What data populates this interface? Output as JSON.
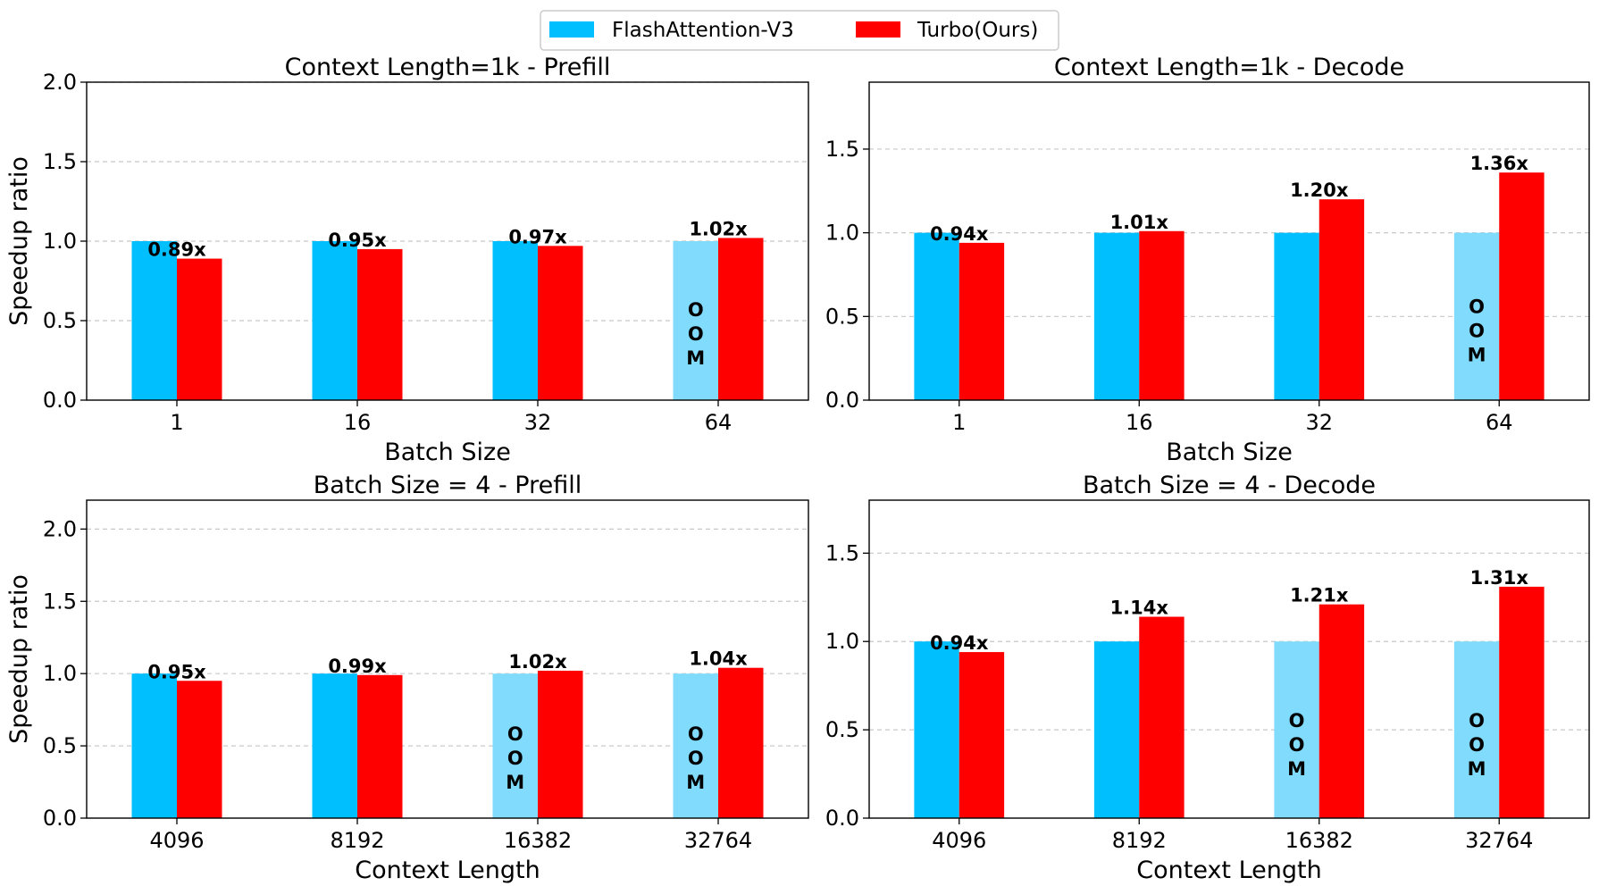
{
  "legend": {
    "items": [
      {
        "label": "FlashAttention-V3",
        "color": "#00bfff"
      },
      {
        "label": "Turbo(Ours)",
        "color": "#ff0000"
      }
    ]
  },
  "colors": {
    "baseline": "#00bfff",
    "baseline_oom": "#80dbfc",
    "turbo": "#ff0000",
    "grid": "#c8c8c8"
  },
  "oom_text": "OOM",
  "chart_data": [
    {
      "type": "bar",
      "title": "Context Length=1k - Prefill",
      "xlabel": "Batch Size",
      "ylabel": "Speedup ratio",
      "categories": [
        "1",
        "16",
        "32",
        "64"
      ],
      "ylim": [
        0,
        2.0
      ],
      "yticks": [
        "0.0",
        "0.5",
        "1.0",
        "1.5",
        "2.0"
      ],
      "grid": true,
      "series": [
        {
          "name": "FlashAttention-V3",
          "values": [
            1.0,
            1.0,
            1.0,
            1.0
          ],
          "oom": [
            false,
            false,
            false,
            true
          ]
        },
        {
          "name": "Turbo(Ours)",
          "values": [
            0.89,
            0.95,
            0.97,
            1.02
          ],
          "labels": [
            "0.89x",
            "0.95x",
            "0.97x",
            "1.02x"
          ]
        }
      ]
    },
    {
      "type": "bar",
      "title": "Context Length=1k - Decode",
      "xlabel": "Batch Size",
      "ylabel": "",
      "categories": [
        "1",
        "16",
        "32",
        "64"
      ],
      "ylim": [
        0,
        1.9
      ],
      "yticks": [
        "0.0",
        "0.5",
        "1.0",
        "1.5"
      ],
      "grid": true,
      "series": [
        {
          "name": "FlashAttention-V3",
          "values": [
            1.0,
            1.0,
            1.0,
            1.0
          ],
          "oom": [
            false,
            false,
            false,
            true
          ]
        },
        {
          "name": "Turbo(Ours)",
          "values": [
            0.94,
            1.01,
            1.2,
            1.36
          ],
          "labels": [
            "0.94x",
            "1.01x",
            "1.20x",
            "1.36x"
          ]
        }
      ]
    },
    {
      "type": "bar",
      "title": "Batch Size = 4 - Prefill",
      "xlabel": "Context Length",
      "ylabel": "Speedup ratio",
      "categories": [
        "4096",
        "8192",
        "16382",
        "32764"
      ],
      "ylim": [
        0,
        2.2
      ],
      "yticks": [
        "0.0",
        "0.5",
        "1.0",
        "1.5",
        "2.0"
      ],
      "grid": true,
      "series": [
        {
          "name": "FlashAttention-V3",
          "values": [
            1.0,
            1.0,
            1.0,
            1.0
          ],
          "oom": [
            false,
            false,
            true,
            true
          ]
        },
        {
          "name": "Turbo(Ours)",
          "values": [
            0.95,
            0.99,
            1.02,
            1.04
          ],
          "labels": [
            "0.95x",
            "0.99x",
            "1.02x",
            "1.04x"
          ]
        }
      ]
    },
    {
      "type": "bar",
      "title": "Batch Size = 4 - Decode",
      "xlabel": "Context Length",
      "ylabel": "",
      "categories": [
        "4096",
        "8192",
        "16382",
        "32764"
      ],
      "ylim": [
        0,
        1.8
      ],
      "yticks": [
        "0.0",
        "0.5",
        "1.0",
        "1.5"
      ],
      "grid": true,
      "series": [
        {
          "name": "FlashAttention-V3",
          "values": [
            1.0,
            1.0,
            1.0,
            1.0
          ],
          "oom": [
            false,
            false,
            true,
            true
          ]
        },
        {
          "name": "Turbo(Ours)",
          "values": [
            0.94,
            1.14,
            1.21,
            1.31
          ],
          "labels": [
            "0.94x",
            "1.14x",
            "1.21x",
            "1.31x"
          ]
        }
      ]
    }
  ]
}
